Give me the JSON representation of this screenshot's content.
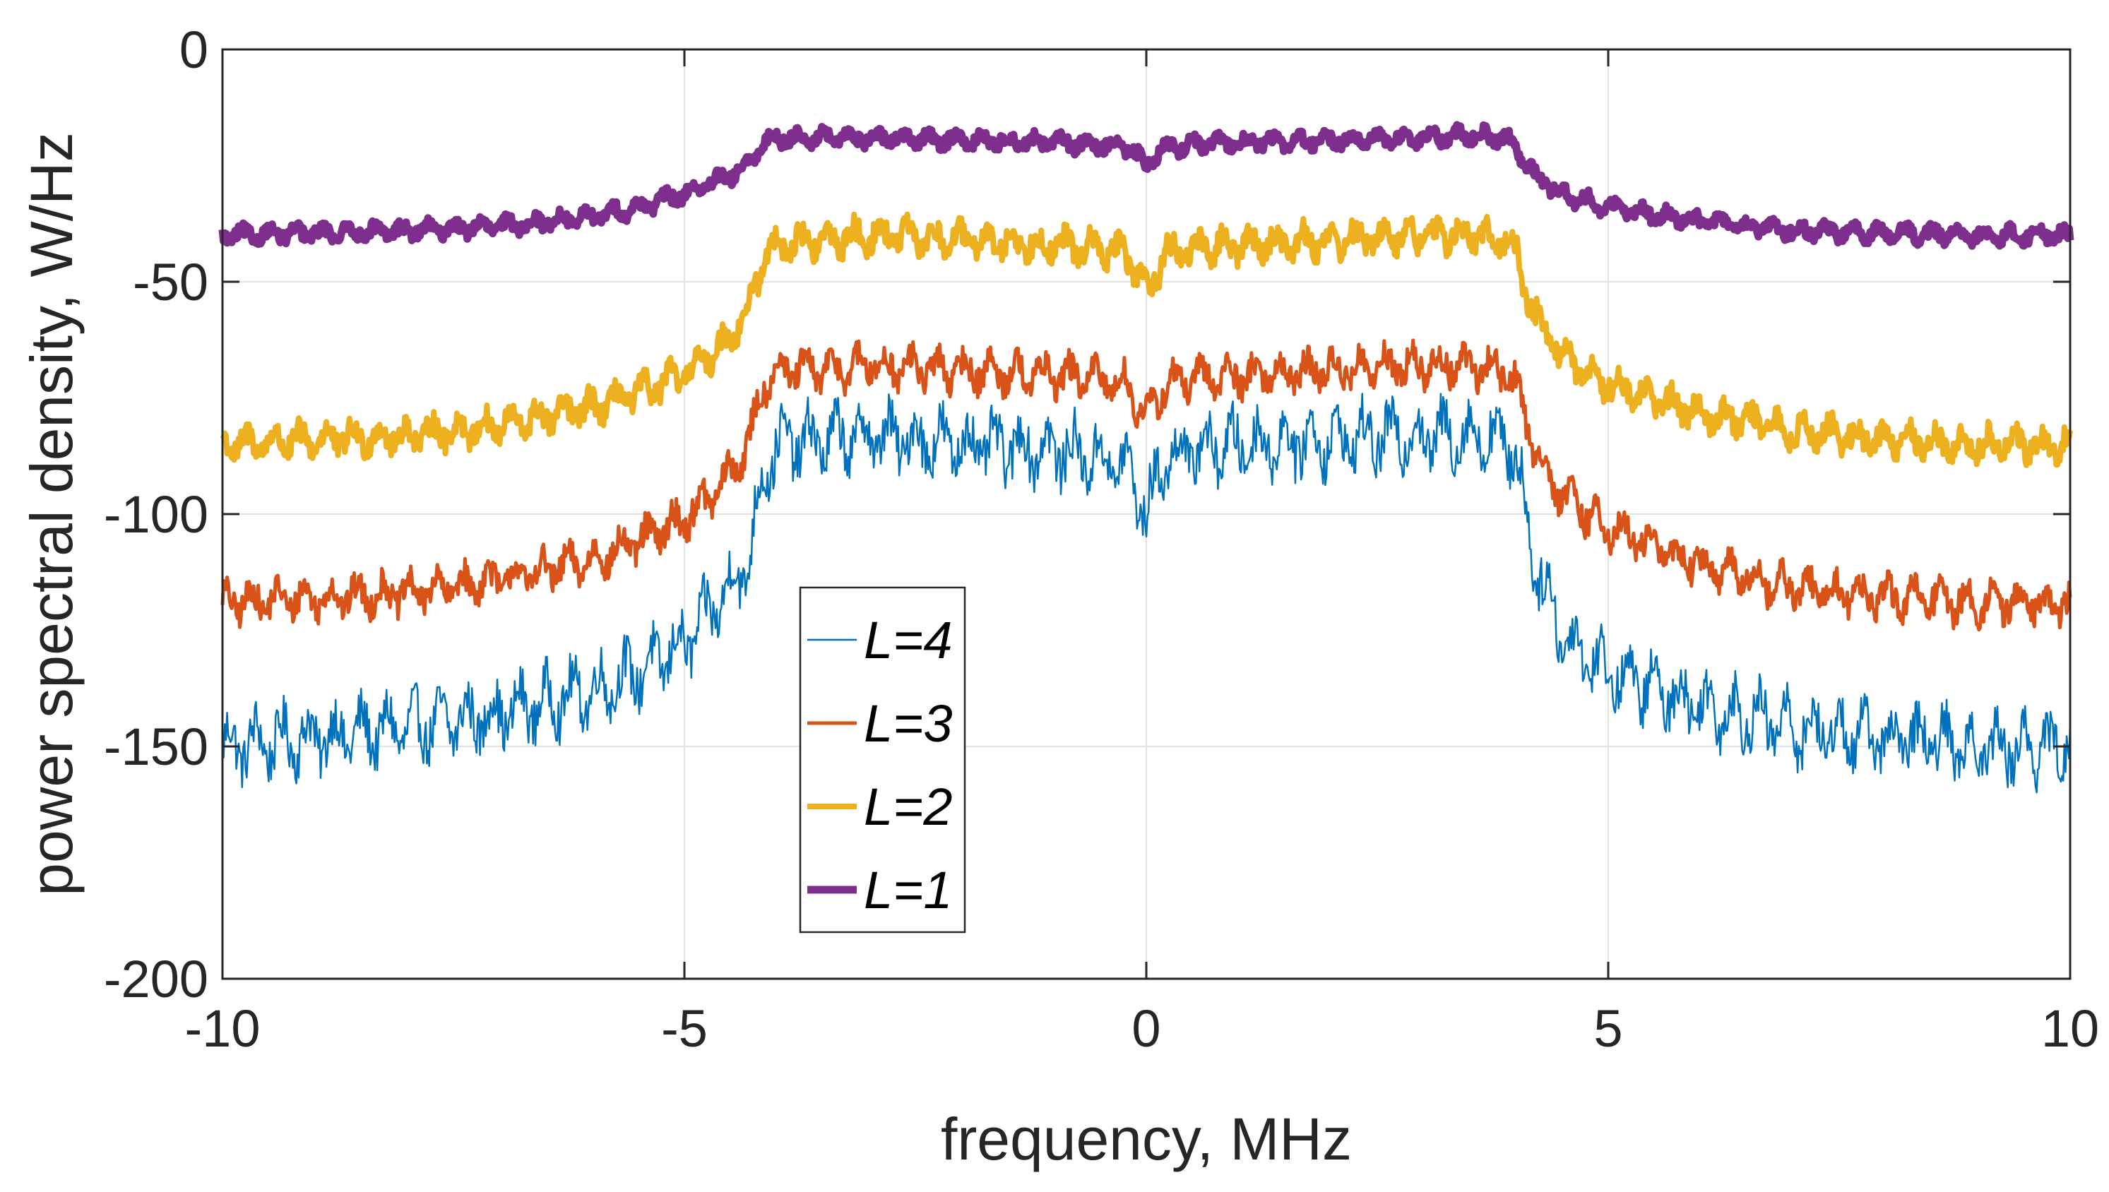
{
  "chart_data": {
    "type": "line",
    "title": "",
    "xlabel": "frequency, MHz",
    "ylabel": "power spectral density, W/Hz",
    "xlim": [
      -10,
      10
    ],
    "ylim": [
      -200,
      0
    ],
    "xticks": [
      -10,
      -5,
      0,
      5,
      10
    ],
    "xtick_labels": [
      "-10",
      "-5",
      "0",
      "5",
      "10"
    ],
    "yticks": [
      0,
      -50,
      -100,
      -150,
      -200
    ],
    "ytick_labels": [
      "0",
      "-50",
      "-100",
      "-150",
      "-200"
    ],
    "grid": true,
    "legend_position": "center-left",
    "series": [
      {
        "name": "L=4",
        "color": "#0072BD",
        "line_width": "thin",
        "noise_amplitude": 10,
        "x": [
          -10,
          -9,
          -8,
          -7,
          -6,
          -5.5,
          -5,
          -4.6,
          -4.3,
          -4.15,
          -4.0,
          -3.5,
          -3.0,
          -2.0,
          -1.0,
          -0.5,
          -0.2,
          0,
          0.2,
          0.5,
          1.0,
          2.0,
          3.0,
          3.5,
          3.9,
          4.0,
          4.2,
          4.5,
          5.0,
          6.0,
          7.0,
          8.0,
          9.0,
          10
        ],
        "y": [
          -150,
          -148,
          -146,
          -143,
          -138,
          -134,
          -128,
          -118,
          -110,
          -92,
          -85,
          -84,
          -83,
          -85,
          -86,
          -88,
          -90,
          -100,
          -88,
          -86,
          -85,
          -84,
          -83,
          -83,
          -84,
          -88,
          -110,
          -126,
          -134,
          -141,
          -146,
          -148,
          -150,
          -150
        ]
      },
      {
        "name": "L=3",
        "color": "#D95319",
        "line_width": "medium",
        "noise_amplitude": 6,
        "x": [
          -10,
          -9,
          -8,
          -7,
          -6,
          -5.5,
          -5,
          -4.6,
          -4.3,
          -4.15,
          -4.0,
          -3.5,
          -3.0,
          -2.0,
          -1.0,
          -0.5,
          -0.2,
          0,
          0.2,
          0.5,
          1.0,
          2.0,
          3.0,
          3.5,
          3.9,
          4.0,
          4.2,
          4.5,
          5.0,
          6.0,
          7.0,
          8.0,
          9.0,
          10
        ],
        "y": [
          -119,
          -118,
          -117,
          -114,
          -110,
          -106,
          -101,
          -94,
          -85,
          -72,
          -69,
          -69,
          -68,
          -69,
          -70,
          -71,
          -72,
          -80,
          -72,
          -71,
          -70,
          -69,
          -68,
          -68,
          -69,
          -72,
          -86,
          -96,
          -103,
          -111,
          -116,
          -118,
          -119,
          -119
        ]
      },
      {
        "name": "L=2",
        "color": "#EDB120",
        "line_width": "thick",
        "noise_amplitude": 5,
        "x": [
          -10,
          -9,
          -8,
          -7,
          -6,
          -5.5,
          -5,
          -4.6,
          -4.3,
          -4.15,
          -4.0,
          -3.5,
          -3.0,
          -2.0,
          -1.0,
          -0.5,
          -0.2,
          0,
          0.2,
          0.5,
          1.0,
          2.0,
          3.0,
          3.5,
          3.9,
          4.0,
          4.2,
          4.5,
          5.0,
          6.0,
          7.0,
          8.0,
          9.0,
          10
        ],
        "y": [
          -85,
          -84,
          -83,
          -81,
          -77,
          -74,
          -70,
          -64,
          -56,
          -45,
          -42,
          -41,
          -40,
          -41,
          -42,
          -43,
          -44,
          -52,
          -44,
          -43,
          -42,
          -41,
          -40,
          -40,
          -41,
          -44,
          -57,
          -66,
          -72,
          -78,
          -82,
          -84,
          -85,
          -85
        ]
      },
      {
        "name": "L=1",
        "color": "#7E2F8E",
        "line_width": "very thick",
        "noise_amplitude": 2.5,
        "x": [
          -10,
          -9,
          -8,
          -7,
          -6,
          -5.5,
          -5,
          -4.6,
          -4.3,
          -4.15,
          -4.0,
          -3.5,
          -3.0,
          -2.0,
          -1.0,
          -0.5,
          -0.2,
          0,
          0.2,
          0.5,
          1.0,
          2.0,
          3.0,
          3.5,
          3.9,
          4.0,
          4.2,
          4.5,
          5.0,
          6.0,
          7.0,
          8.0,
          9.0,
          10
        ],
        "y": [
          -40,
          -39.5,
          -39,
          -38,
          -36,
          -34,
          -31,
          -28,
          -25,
          -20,
          -19,
          -19,
          -19,
          -19.5,
          -20,
          -20.5,
          -21,
          -25,
          -21,
          -20.5,
          -20,
          -19.5,
          -19,
          -18.5,
          -19,
          -21,
          -27,
          -31,
          -34,
          -37,
          -39,
          -39.5,
          -40,
          -40
        ]
      }
    ]
  }
}
